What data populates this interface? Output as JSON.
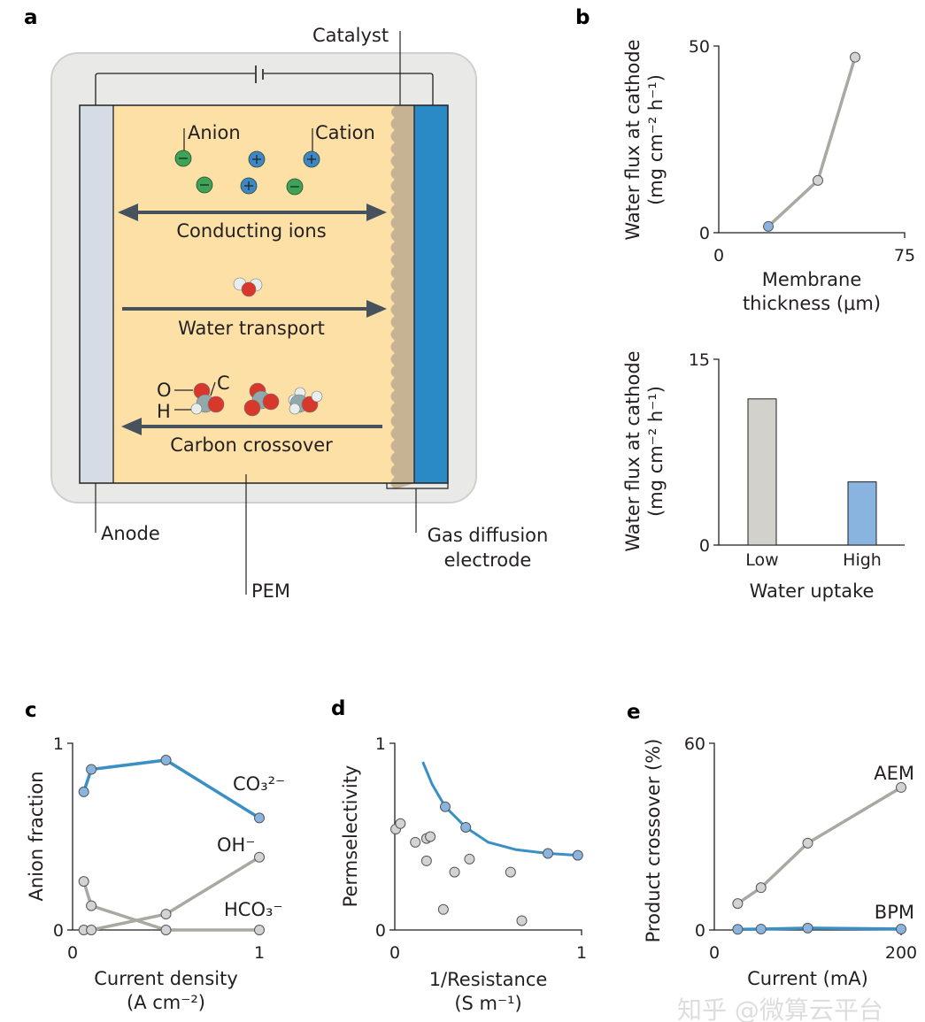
{
  "panel_labels": {
    "a": "a",
    "b": "b",
    "c": "c",
    "d": "d",
    "e": "e"
  },
  "diagram": {
    "catalyst": "Catalyst",
    "anion": "Anion",
    "cation": "Cation",
    "conducting_ions": "Conducting ions",
    "water_transport": "Water transport",
    "carbon_crossover": "Carbon crossover",
    "atom_o": "O",
    "atom_c": "C",
    "atom_h": "H",
    "anode": "Anode",
    "pem": "PEM",
    "gde_line1": "Gas diffusion",
    "gde_line2": "electrode",
    "colors": {
      "anode": "#d4dce6",
      "pem": "#fce0a6",
      "catalyst": "#c5b394",
      "gde": "#2a8ac6",
      "anion": "#3fa357",
      "cation": "#3e86c6",
      "oxygen": "#d8382c",
      "carbon": "#8fa9ad",
      "hydrogen": "#e8eeee"
    }
  },
  "watermark": "知乎 @微算云平台",
  "chart_data": [
    {
      "id": "b_top",
      "type": "line",
      "xlabel": [
        "Membrane",
        "thickness (μm)"
      ],
      "ylabel": [
        "Water flux at cathode",
        "(mg cm⁻² h⁻¹)"
      ],
      "xlim": [
        0,
        75
      ],
      "ylim": [
        0,
        50
      ],
      "xticks": [
        "0",
        "75"
      ],
      "yticks": [
        "0",
        "50"
      ],
      "grid": false,
      "series": [
        {
          "x": [
            20,
            40,
            55
          ],
          "y": [
            1.7,
            14,
            47
          ],
          "line_color": "#a9a9a2",
          "marker_colors": [
            "#8ab4e0",
            "#d3d3d3",
            "#d3d3d3"
          ]
        }
      ]
    },
    {
      "id": "b_bottom",
      "type": "bar",
      "xlabel": [
        "Water uptake"
      ],
      "ylabel": [
        "Water flux at cathode",
        "(mg cm⁻² h⁻¹)"
      ],
      "ylim": [
        0,
        15
      ],
      "yticks": [
        "0",
        "15"
      ],
      "categories": [
        "Low",
        "High"
      ],
      "values": [
        11.8,
        5.1
      ],
      "bar_colors": [
        "#d2d1cb",
        "#8ab4e0"
      ],
      "grid": false
    },
    {
      "id": "c",
      "type": "line",
      "xlabel": [
        "Current density",
        "(A cm⁻²)"
      ],
      "ylabel": [
        "Anion fraction"
      ],
      "xlim": [
        0,
        1
      ],
      "ylim": [
        0,
        1
      ],
      "xticks": [
        "0",
        "1"
      ],
      "yticks": [
        "0",
        "1"
      ],
      "grid": false,
      "series": [
        {
          "name": "CO₃²⁻",
          "x": [
            0.06,
            0.1,
            0.5,
            1.0
          ],
          "y": [
            0.74,
            0.86,
            0.91,
            0.6
          ],
          "line_color": "#3a8fc4",
          "marker_color": "#8ab4e0"
        },
        {
          "name": "OH⁻",
          "x": [
            0.06,
            0.1,
            0.5,
            1.0
          ],
          "y": [
            0,
            0,
            0.085,
            0.39
          ],
          "line_color": "#a9a9a2",
          "marker_color": "#d3d3d3"
        },
        {
          "name": "HCO₃⁻",
          "x": [
            0.06,
            0.1,
            0.5,
            1.0
          ],
          "y": [
            0.26,
            0.13,
            0,
            0
          ],
          "line_color": "#a9a9a2",
          "marker_color": "#d3d3d3"
        }
      ]
    },
    {
      "id": "d",
      "type": "scatter",
      "xlabel": [
        "1/Resistance",
        "(S m⁻¹)"
      ],
      "ylabel": [
        "Permselectivity"
      ],
      "xlim": [
        0,
        1
      ],
      "ylim": [
        0,
        1
      ],
      "xticks": [
        "0",
        "1"
      ],
      "yticks": [
        "0",
        "1"
      ],
      "grid": false,
      "fit_curve": {
        "x": [
          0.15,
          0.2,
          0.27,
          0.38,
          0.5,
          0.65,
          0.82,
          0.98,
          1.0
        ],
        "y": [
          0.9,
          0.78,
          0.66,
          0.55,
          0.47,
          0.43,
          0.41,
          0.4,
          0.4
        ],
        "color": "#3a8fc4"
      },
      "series": [
        {
          "x": [
            0.27,
            0.38,
            0.82,
            0.98
          ],
          "y": [
            0.66,
            0.55,
            0.41,
            0.4
          ],
          "marker_color": "#8ab4e0"
        },
        {
          "x": [
            0.005,
            0.03,
            0.11,
            0.17,
            0.19,
            0.17,
            0.32,
            0.4,
            0.62,
            0.26,
            0.68
          ],
          "y": [
            0.54,
            0.57,
            0.47,
            0.49,
            0.5,
            0.37,
            0.31,
            0.38,
            0.31,
            0.11,
            0.05
          ],
          "marker_color": "#d3d3d3"
        }
      ]
    },
    {
      "id": "e",
      "type": "line",
      "xlabel": [
        "Current (mA)"
      ],
      "ylabel": [
        "Product crossover (%)"
      ],
      "xlim": [
        0,
        200
      ],
      "ylim": [
        0,
        60
      ],
      "xticks": [
        "0",
        "200"
      ],
      "yticks": [
        "0",
        "60"
      ],
      "grid": false,
      "series": [
        {
          "name": "AEM",
          "x": [
            25,
            50,
            100,
            200
          ],
          "y": [
            8.5,
            13.6,
            27.9,
            45.8
          ],
          "line_color": "#a9a9a2",
          "marker_color": "#d3d3d3"
        },
        {
          "name": "BPM",
          "x": [
            25,
            50,
            100,
            200
          ],
          "y": [
            0.2,
            0.3,
            0.6,
            0.3
          ],
          "line_color": "#3a8fc4",
          "marker_color": "#8ab4e0"
        }
      ]
    }
  ]
}
